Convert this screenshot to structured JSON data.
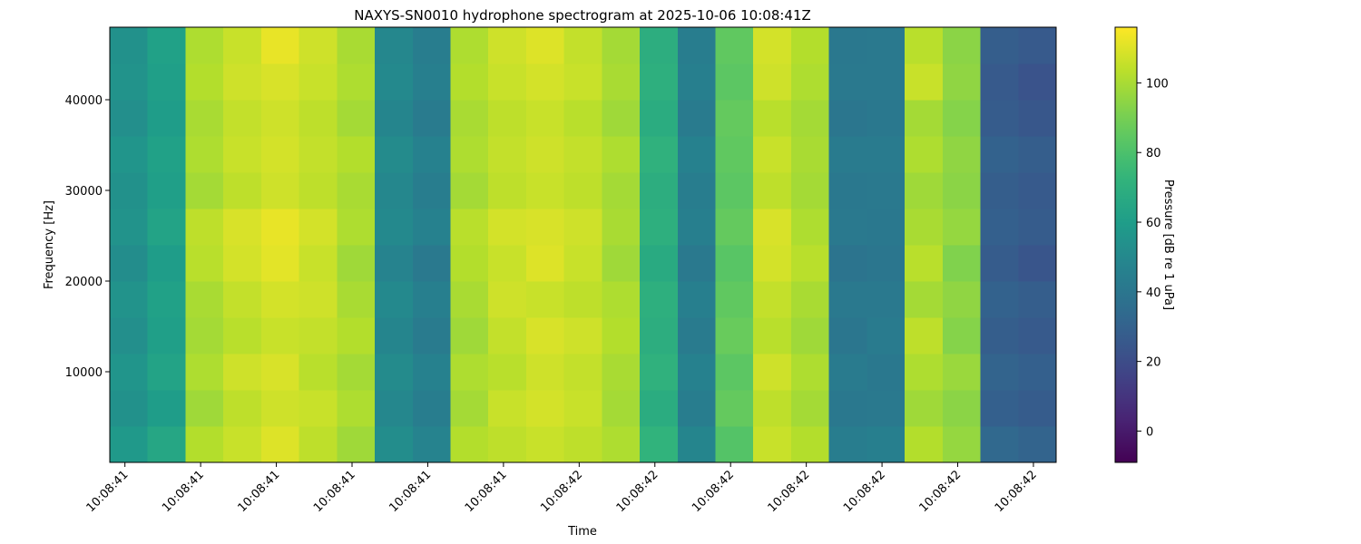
{
  "chart_data": {
    "type": "heatmap",
    "title": "NAXYS-SN0010 hydrophone spectrogram at 2025-10-06 10:08:41Z",
    "xlabel": "Time",
    "ylabel": "Frequency [Hz]",
    "colorbar_label": "Pressure [dB re 1 uPa]",
    "colormap": "viridis",
    "xlim": [
      41.38,
      42.63
    ],
    "ylim": [
      0,
      48000
    ],
    "clim": [
      -9,
      116
    ],
    "xticks": [
      {
        "value": 41.4,
        "label": "10:08:41"
      },
      {
        "value": 41.5,
        "label": "10:08:41"
      },
      {
        "value": 41.6,
        "label": "10:08:41"
      },
      {
        "value": 41.7,
        "label": "10:08:41"
      },
      {
        "value": 41.8,
        "label": "10:08:41"
      },
      {
        "value": 41.9,
        "label": "10:08:41"
      },
      {
        "value": 42.0,
        "label": "10:08:42"
      },
      {
        "value": 42.1,
        "label": "10:08:42"
      },
      {
        "value": 42.2,
        "label": "10:08:42"
      },
      {
        "value": 42.3,
        "label": "10:08:42"
      },
      {
        "value": 42.4,
        "label": "10:08:42"
      },
      {
        "value": 42.5,
        "label": "10:08:42"
      },
      {
        "value": 42.6,
        "label": "10:08:42"
      }
    ],
    "yticks": [
      10000,
      20000,
      30000,
      40000
    ],
    "cticks": [
      0,
      20,
      40,
      60,
      80,
      100
    ],
    "x_edges": [
      41.38,
      41.43,
      41.48,
      41.53,
      41.58,
      41.63,
      41.68,
      41.73,
      41.78,
      41.83,
      41.88,
      41.93,
      41.98,
      42.03,
      42.08,
      42.13,
      42.18,
      42.23,
      42.28,
      42.33,
      42.38,
      42.43,
      42.48,
      42.53,
      42.58,
      42.63
    ],
    "y_edges": [
      0,
      4000,
      8000,
      12000,
      16000,
      20000,
      24000,
      28000,
      32000,
      36000,
      40000,
      44000,
      48000
    ],
    "z": [
      [
        58,
        65,
        102,
        106,
        110,
        104,
        98,
        52,
        47,
        102,
        104,
        106,
        104,
        101,
        72,
        48,
        82,
        106,
        102,
        44,
        45,
        102,
        96,
        33,
        31
      ],
      [
        54,
        60,
        98,
        104,
        107,
        106,
        101,
        49,
        44,
        99,
        106,
        108,
        106,
        99,
        68,
        44,
        86,
        104,
        99,
        41,
        42,
        98,
        94,
        29,
        27
      ],
      [
        56,
        63,
        101,
        107,
        109,
        103,
        99,
        51,
        46,
        101,
        103,
        107,
        105,
        100,
        71,
        46,
        84,
        107,
        101,
        43,
        41,
        101,
        97,
        31,
        29
      ],
      [
        53,
        61,
        99,
        103,
        106,
        105,
        102,
        48,
        43,
        98,
        105,
        109,
        107,
        102,
        69,
        43,
        87,
        103,
        98,
        40,
        43,
        104,
        93,
        28,
        26
      ],
      [
        55,
        62,
        100,
        105,
        108,
        107,
        100,
        50,
        45,
        100,
        107,
        106,
        104,
        101,
        70,
        45,
        85,
        105,
        100,
        42,
        42,
        99,
        95,
        30,
        28
      ],
      [
        52,
        60,
        103,
        108,
        111,
        106,
        98,
        47,
        42,
        102,
        106,
        110,
        106,
        98,
        67,
        42,
        83,
        108,
        103,
        39,
        40,
        103,
        92,
        27,
        24
      ],
      [
        55,
        63,
        104,
        109,
        112,
        108,
        101,
        50,
        46,
        103,
        108,
        109,
        107,
        100,
        70,
        45,
        86,
        109,
        101,
        42,
        41,
        100,
        96,
        29,
        27
      ],
      [
        54,
        61,
        99,
        104,
        107,
        104,
        100,
        49,
        44,
        99,
        104,
        106,
        104,
        99,
        69,
        44,
        84,
        104,
        99,
        41,
        42,
        98,
        94,
        28,
        26
      ],
      [
        56,
        62,
        101,
        106,
        108,
        105,
        102,
        51,
        46,
        101,
        105,
        107,
        105,
        101,
        71,
        46,
        85,
        106,
        100,
        43,
        43,
        101,
        95,
        30,
        28
      ],
      [
        53,
        60,
        100,
        105,
        107,
        104,
        99,
        48,
        43,
        100,
        104,
        106,
        103,
        98,
        68,
        43,
        86,
        103,
        99,
        40,
        41,
        99,
        93,
        27,
        25
      ],
      [
        55,
        61,
        102,
        107,
        109,
        106,
        101,
        50,
        45,
        102,
        106,
        108,
        106,
        100,
        70,
        45,
        84,
        107,
        101,
        42,
        42,
        106,
        95,
        26,
        23
      ],
      [
        54,
        62,
        101,
        106,
        112,
        107,
        100,
        49,
        44,
        101,
        107,
        110,
        105,
        99,
        69,
        44,
        85,
        108,
        102,
        41,
        42,
        103,
        94,
        28,
        26
      ]
    ]
  }
}
